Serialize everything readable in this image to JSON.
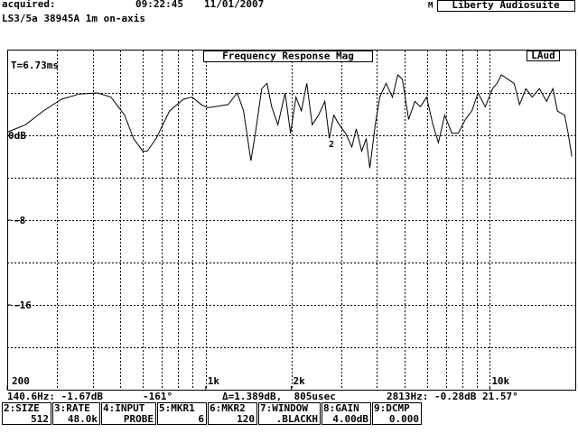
{
  "header": {
    "acquired": "acquired:",
    "time": "09:22:45",
    "date": "11/01/2007",
    "mode": "M",
    "app": "Liberty Audiosuite",
    "subtitle": "LS3/5a 38945A 1m on-axis"
  },
  "chart_data": {
    "type": "line",
    "title": "Frequency Response Mag",
    "badge": "LAud",
    "annotation": "T=6.73ms",
    "marker_label": "2",
    "color": "#000000",
    "log_x": true,
    "grid": true,
    "xlim": [
      200,
      20000
    ],
    "xticks": [
      200,
      {
        "value": 1000,
        "label": "1k"
      },
      {
        "value": 2000,
        "label": "2k"
      },
      {
        "value": 10000,
        "label": "10k"
      }
    ],
    "ylim": [
      -24,
      8
    ],
    "yticks": [
      {
        "value": 0,
        "label": "0dB"
      },
      -8,
      -16
    ],
    "x": [
      200,
      232,
      268,
      310,
      359,
      416,
      464,
      518,
      557,
      600,
      622,
      669,
      746,
      833,
      896,
      964,
      1015,
      1076,
      1200,
      1291,
      1359,
      1442,
      1495,
      1574,
      1644,
      1706,
      1795,
      1903,
      1988,
      2077,
      2171,
      2268,
      2370,
      2495,
      2626,
      2723,
      2824,
      2951,
      3105,
      3268,
      3389,
      3540,
      3673,
      3782,
      3952,
      4099,
      4314,
      4540,
      4745,
      4921,
      5179,
      5451,
      5696,
      5995,
      6310,
      6594,
      6940,
      7356,
      7742,
      8206,
      8641,
      9095,
      9641,
      10230,
      10600,
      10990,
      11570,
      12180,
      12730,
      13400,
      14100,
      14950,
      15850,
      16680,
      17300,
      18340,
      18880,
      19450
    ],
    "values": [
      0.3,
      1.0,
      2.3,
      3.4,
      3.9,
      4.0,
      3.6,
      1.9,
      -0.3,
      -1.5,
      -1.5,
      -0.3,
      2.3,
      3.4,
      3.6,
      2.9,
      2.6,
      2.7,
      2.9,
      4.0,
      2.3,
      -2.4,
      0.2,
      4.4,
      4.9,
      2.7,
      1.0,
      4.0,
      0.2,
      3.6,
      2.3,
      4.9,
      1.0,
      1.9,
      3.2,
      -0.3,
      1.9,
      1.0,
      0.2,
      -1.1,
      0.6,
      -1.5,
      -0.3,
      -3.1,
      1.0,
      3.6,
      4.9,
      3.6,
      5.7,
      5.3,
      1.5,
      3.2,
      2.7,
      3.6,
      1.0,
      -0.7,
      1.9,
      0.2,
      0.2,
      1.5,
      2.3,
      4.0,
      2.7,
      4.4,
      4.9,
      5.7,
      5.3,
      4.9,
      2.9,
      4.4,
      3.6,
      4.4,
      3.2,
      4.4,
      2.3,
      1.9,
      0.2,
      -2.0
    ]
  },
  "status": [
    "140.6Hz: -1.67dB",
    "-161°",
    "Δ=1.389dB,  805usec",
    "2813Hz: -0.28dB 21.57°"
  ],
  "buttons": [
    {
      "name": "2:SIZE",
      "value": "512"
    },
    {
      "name": "3:RATE",
      "value": "48.0k"
    },
    {
      "name": "4:INPUT",
      "value": "PROBE"
    },
    {
      "name": "5:MKR1",
      "value": "6"
    },
    {
      "name": "6:MKR2",
      "value": "120"
    },
    {
      "name": "7:WINDOW",
      "value": ".BLACKH"
    },
    {
      "name": "8:GAIN",
      "value": "4.00dB"
    },
    {
      "name": "9:DCMP",
      "value": "0.000"
    }
  ]
}
